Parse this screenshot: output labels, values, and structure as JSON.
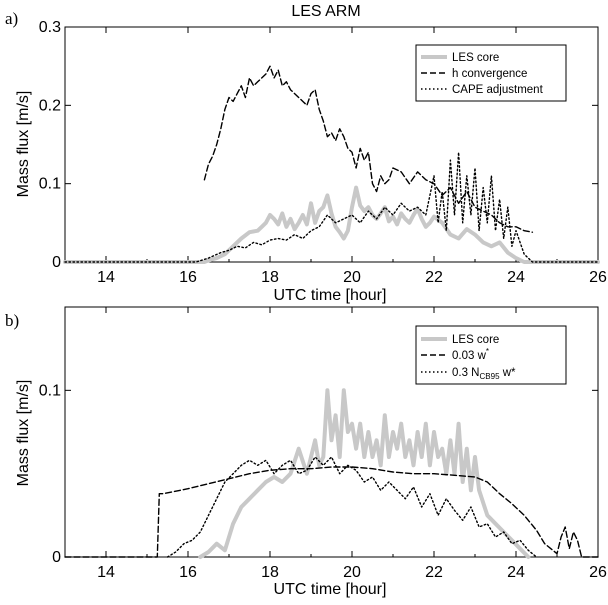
{
  "chart_data": [
    {
      "type": "line",
      "panel_label": "a)",
      "title": "LES ARM",
      "xlabel": "UTC time [hour]",
      "ylabel": "Mass flux [m/s]",
      "xlim": [
        13,
        26
      ],
      "ylim": [
        0,
        0.3
      ],
      "xticks": [
        14,
        16,
        18,
        20,
        22,
        24,
        26
      ],
      "yticks": [
        0,
        0.1,
        0.2,
        0.3
      ],
      "xtick_labels": [
        "14",
        "16",
        "18",
        "20",
        "22",
        "24",
        "26"
      ],
      "ytick_labels": [
        "0",
        "0.1",
        "0.2",
        "0.3"
      ],
      "grid": false,
      "legend_position": "top-right",
      "legend": [
        "LES core",
        "h convergence",
        "CAPE adjustment"
      ],
      "series": [
        {
          "name": "LES core",
          "style": "solid-thick",
          "color": "#c8c8c8",
          "x": [
            13.0,
            16.4,
            16.5,
            16.7,
            16.9,
            17.1,
            17.3,
            17.5,
            17.7,
            17.8,
            17.9,
            18.0,
            18.1,
            18.2,
            18.3,
            18.4,
            18.5,
            18.6,
            18.7,
            18.8,
            18.9,
            19.0,
            19.1,
            19.2,
            19.3,
            19.4,
            19.5,
            19.6,
            19.7,
            19.8,
            19.9,
            20.0,
            20.1,
            20.2,
            20.3,
            20.4,
            20.5,
            20.6,
            20.7,
            20.8,
            20.9,
            21.0,
            21.1,
            21.2,
            21.3,
            21.4,
            21.5,
            21.6,
            21.7,
            21.8,
            21.9,
            22.0,
            22.2,
            22.4,
            22.6,
            22.8,
            23.0,
            23.2,
            23.4,
            23.6,
            23.8,
            24.0,
            24.2,
            26.0
          ],
          "y": [
            0,
            0,
            0.002,
            0.005,
            0.01,
            0.02,
            0.03,
            0.038,
            0.04,
            0.045,
            0.05,
            0.06,
            0.055,
            0.048,
            0.062,
            0.045,
            0.055,
            0.042,
            0.05,
            0.06,
            0.048,
            0.075,
            0.05,
            0.065,
            0.07,
            0.085,
            0.062,
            0.045,
            0.038,
            0.03,
            0.04,
            0.07,
            0.095,
            0.072,
            0.065,
            0.07,
            0.06,
            0.055,
            0.062,
            0.07,
            0.052,
            0.058,
            0.048,
            0.062,
            0.055,
            0.05,
            0.06,
            0.068,
            0.055,
            0.045,
            0.05,
            0.058,
            0.05,
            0.035,
            0.03,
            0.042,
            0.035,
            0.025,
            0.02,
            0.025,
            0.012,
            0.005,
            0,
            0
          ]
        },
        {
          "name": "h convergence",
          "style": "dashed",
          "color": "#000000",
          "x": [
            16.4,
            16.5,
            16.6,
            16.7,
            16.8,
            16.9,
            17.0,
            17.1,
            17.2,
            17.3,
            17.4,
            17.5,
            17.6,
            17.7,
            17.8,
            17.9,
            18.0,
            18.1,
            18.2,
            18.3,
            18.4,
            18.5,
            18.6,
            18.7,
            18.8,
            18.9,
            19.0,
            19.1,
            19.2,
            19.3,
            19.4,
            19.5,
            19.6,
            19.7,
            19.8,
            19.9,
            20.0,
            20.1,
            20.2,
            20.3,
            20.4,
            20.5,
            20.6,
            20.7,
            20.8,
            20.9,
            21.0,
            21.2,
            21.4,
            21.6,
            21.8,
            22.0,
            22.2,
            22.4,
            22.6,
            22.8,
            23.0,
            23.2,
            23.4,
            23.6,
            23.8,
            24.0,
            24.2,
            24.4
          ],
          "y": [
            0.105,
            0.125,
            0.135,
            0.15,
            0.17,
            0.195,
            0.21,
            0.205,
            0.215,
            0.225,
            0.21,
            0.235,
            0.225,
            0.23,
            0.235,
            0.24,
            0.25,
            0.235,
            0.245,
            0.225,
            0.23,
            0.22,
            0.215,
            0.21,
            0.205,
            0.2,
            0.215,
            0.22,
            0.195,
            0.18,
            0.16,
            0.165,
            0.155,
            0.17,
            0.16,
            0.145,
            0.14,
            0.12,
            0.145,
            0.13,
            0.14,
            0.1,
            0.09,
            0.11,
            0.1,
            0.105,
            0.12,
            0.115,
            0.1,
            0.115,
            0.105,
            0.1,
            0.085,
            0.095,
            0.075,
            0.09,
            0.07,
            0.065,
            0.06,
            0.05,
            0.045,
            0.045,
            0.04,
            0.038
          ]
        },
        {
          "name": "CAPE adjustment",
          "style": "dotted",
          "color": "#000000",
          "x": [
            13.0,
            16.2,
            16.5,
            16.8,
            17.0,
            17.2,
            17.4,
            17.6,
            17.8,
            18.0,
            18.2,
            18.4,
            18.6,
            18.8,
            19.0,
            19.2,
            19.4,
            19.6,
            19.8,
            20.0,
            20.2,
            20.4,
            20.6,
            20.8,
            21.0,
            21.2,
            21.4,
            21.6,
            21.8,
            22.0,
            22.1,
            22.2,
            22.3,
            22.4,
            22.5,
            22.6,
            22.7,
            22.8,
            22.9,
            23.0,
            23.1,
            23.2,
            23.3,
            23.4,
            23.5,
            23.6,
            23.7,
            23.8,
            23.9,
            24.0,
            24.2,
            24.4,
            26.0
          ],
          "y": [
            0,
            0,
            0.005,
            0.012,
            0.015,
            0.02,
            0.018,
            0.025,
            0.022,
            0.028,
            0.03,
            0.028,
            0.035,
            0.03,
            0.04,
            0.045,
            0.06,
            0.05,
            0.055,
            0.06,
            0.05,
            0.065,
            0.055,
            0.07,
            0.06,
            0.075,
            0.065,
            0.07,
            0.06,
            0.11,
            0.05,
            0.09,
            0.04,
            0.13,
            0.06,
            0.14,
            0.05,
            0.11,
            0.06,
            0.12,
            0.04,
            0.095,
            0.05,
            0.11,
            0.04,
            0.08,
            0.03,
            0.07,
            0.02,
            0.04,
            0.01,
            0,
            0
          ]
        }
      ]
    },
    {
      "type": "line",
      "panel_label": "b)",
      "title": "",
      "xlabel": "UTC time [hour]",
      "ylabel": "Mass flux [m/s]",
      "xlim": [
        13,
        26
      ],
      "ylim": [
        0,
        0.15
      ],
      "xticks": [
        14,
        16,
        18,
        20,
        22,
        24,
        26
      ],
      "yticks": [
        0,
        0.1
      ],
      "xtick_labels": [
        "14",
        "16",
        "18",
        "20",
        "22",
        "24",
        "26"
      ],
      "ytick_labels": [
        "0",
        "0.1"
      ],
      "grid": false,
      "legend_position": "top-right",
      "legend": [
        "LES core",
        "0.03 w*",
        "0.3 NCB95 w*"
      ],
      "legend_parts": [
        {
          "main": "LES core",
          "sub": "",
          "sup": "",
          "tail": ""
        },
        {
          "main": "0.03 w",
          "sub": "",
          "sup": "*",
          "tail": ""
        },
        {
          "main": "0.3 N",
          "sub": "CB95",
          "sup": "",
          "tail": " w*"
        }
      ],
      "series": [
        {
          "name": "LES core",
          "style": "solid-thick",
          "color": "#c8c8c8",
          "x": [
            16.3,
            16.5,
            16.7,
            16.9,
            17.1,
            17.3,
            17.5,
            17.7,
            17.9,
            18.1,
            18.3,
            18.5,
            18.7,
            18.9,
            19.0,
            19.1,
            19.2,
            19.3,
            19.4,
            19.5,
            19.6,
            19.7,
            19.8,
            19.9,
            20.0,
            20.1,
            20.2,
            20.3,
            20.4,
            20.5,
            20.6,
            20.7,
            20.8,
            20.9,
            21.0,
            21.1,
            21.2,
            21.3,
            21.4,
            21.5,
            21.6,
            21.7,
            21.8,
            21.9,
            22.0,
            22.1,
            22.2,
            22.3,
            22.4,
            22.5,
            22.6,
            22.7,
            22.8,
            22.9,
            23.0,
            23.1,
            23.3,
            23.5,
            23.7,
            23.9,
            24.1,
            24.3
          ],
          "y": [
            0,
            0.003,
            0.008,
            0.004,
            0.02,
            0.03,
            0.035,
            0.04,
            0.045,
            0.048,
            0.045,
            0.05,
            0.065,
            0.05,
            0.06,
            0.07,
            0.055,
            0.06,
            0.1,
            0.07,
            0.085,
            0.06,
            0.1,
            0.075,
            0.08,
            0.065,
            0.08,
            0.06,
            0.075,
            0.06,
            0.07,
            0.055,
            0.085,
            0.06,
            0.075,
            0.065,
            0.08,
            0.06,
            0.07,
            0.055,
            0.075,
            0.06,
            0.08,
            0.055,
            0.075,
            0.06,
            0.065,
            0.05,
            0.07,
            0.05,
            0.08,
            0.045,
            0.065,
            0.04,
            0.06,
            0.04,
            0.025,
            0.02,
            0.015,
            0.01,
            0.005,
            0
          ]
        },
        {
          "name": "0.03 w*",
          "style": "dashed",
          "color": "#000000",
          "x": [
            13.0,
            15.25,
            15.3,
            15.4,
            16.0,
            16.5,
            17.0,
            17.5,
            18.0,
            18.5,
            19.0,
            19.5,
            20.0,
            20.5,
            21.0,
            21.5,
            22.0,
            22.5,
            23.0,
            23.3,
            23.6,
            23.9,
            24.2,
            24.5,
            24.7,
            24.9,
            25.0,
            25.1,
            25.2,
            25.3,
            25.4,
            25.5,
            25.6,
            26.0
          ],
          "y": [
            0,
            0,
            0.038,
            0.038,
            0.041,
            0.044,
            0.047,
            0.05,
            0.052,
            0.053,
            0.053,
            0.054,
            0.054,
            0.053,
            0.051,
            0.05,
            0.05,
            0.049,
            0.048,
            0.045,
            0.038,
            0.032,
            0.025,
            0.016,
            0.008,
            0.004,
            0.002,
            0.012,
            0.018,
            0.005,
            0.015,
            0.01,
            0,
            0
          ]
        },
        {
          "name": "0.3 NCB95 w*",
          "style": "dotted",
          "color": "#000000",
          "x": [
            15.5,
            15.7,
            15.9,
            16.1,
            16.3,
            16.5,
            16.7,
            16.9,
            17.1,
            17.3,
            17.5,
            17.7,
            17.9,
            18.1,
            18.3,
            18.5,
            18.7,
            18.9,
            19.1,
            19.3,
            19.5,
            19.7,
            19.9,
            20.1,
            20.3,
            20.5,
            20.7,
            20.9,
            21.1,
            21.3,
            21.5,
            21.7,
            21.9,
            22.1,
            22.3,
            22.5,
            22.7,
            22.9,
            23.1,
            23.3,
            23.5,
            23.7,
            23.9,
            24.1,
            24.3,
            24.5
          ],
          "y": [
            0,
            0.003,
            0.008,
            0.01,
            0.015,
            0.025,
            0.035,
            0.045,
            0.05,
            0.055,
            0.058,
            0.055,
            0.058,
            0.05,
            0.055,
            0.058,
            0.05,
            0.052,
            0.06,
            0.055,
            0.06,
            0.05,
            0.055,
            0.052,
            0.045,
            0.048,
            0.04,
            0.045,
            0.04,
            0.035,
            0.042,
            0.03,
            0.038,
            0.025,
            0.035,
            0.028,
            0.022,
            0.03,
            0.018,
            0.02,
            0.012,
            0.015,
            0.008,
            0.01,
            0.004,
            0
          ]
        }
      ]
    }
  ]
}
